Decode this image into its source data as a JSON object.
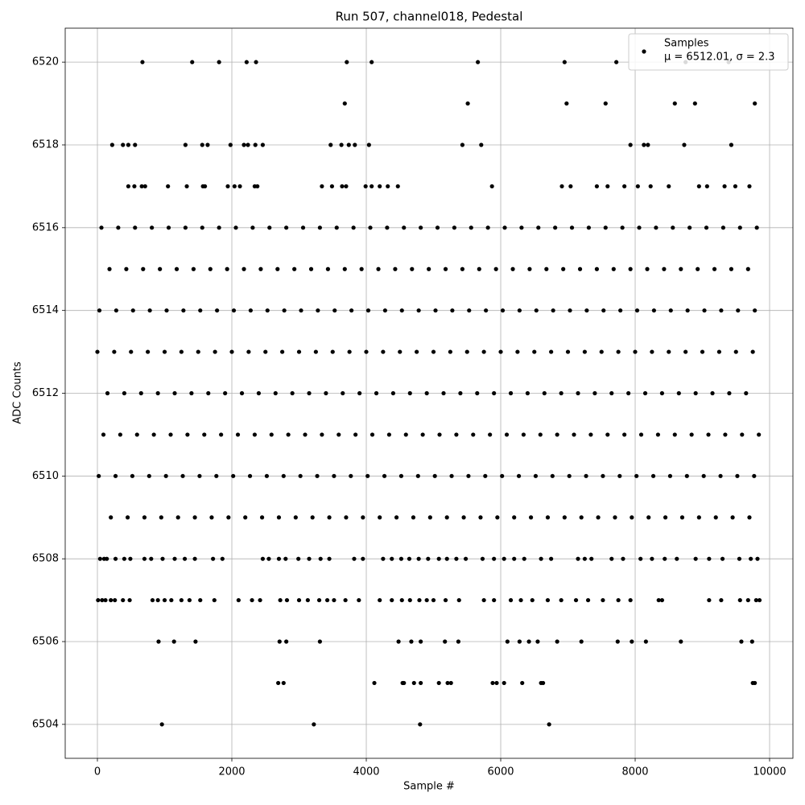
{
  "chart_data": {
    "type": "scatter",
    "title": "Run 507, channel018, Pedestal",
    "x_label": "Sample #",
    "y_label": "ADC Counts",
    "xlim": [
      -479,
      10347
    ],
    "xticks": [
      0,
      2000,
      4000,
      6000,
      8000,
      10000
    ],
    "ylim": [
      6503.18,
      6520.82
    ],
    "yticks": [
      6504,
      6506,
      6508,
      6510,
      6512,
      6514,
      6516,
      6518,
      6520
    ],
    "grid": true,
    "legend_position": "upper right",
    "legend_note": "μ = 6512.01, σ = 2.3",
    "series": [
      {
        "name": "Samples",
        "color": "#000000",
        "x": [
          670,
          1410,
          1810,
          2220,
          2360,
          3710,
          4080,
          5660,
          6950,
          7720,
          8750,
          9390,
          3680,
          5510,
          6980,
          7560,
          8590,
          8890,
          9780,
          220,
          380,
          460,
          560,
          1310,
          1560,
          1640,
          1980,
          2180,
          2240,
          2350,
          2460,
          3470,
          3630,
          3740,
          3830,
          4040,
          5430,
          5710,
          7930,
          8130,
          8190,
          8730,
          9430,
          460,
          550,
          660,
          710,
          1050,
          1330,
          1570,
          1600,
          1940,
          2040,
          2120,
          2340,
          2380,
          3340,
          3490,
          3640,
          3700,
          3990,
          4080,
          4200,
          4320,
          4470,
          5870,
          6910,
          7040,
          7430,
          7590,
          7840,
          8040,
          8230,
          8500,
          8950,
          9070,
          9330,
          9490,
          9700,
          60,
          310,
          560,
          810,
          1060,
          1310,
          1560,
          1810,
          2060,
          2310,
          2560,
          2810,
          3060,
          3310,
          3560,
          3810,
          4060,
          4310,
          4560,
          4810,
          5060,
          5310,
          5560,
          5810,
          6060,
          6310,
          6560,
          6810,
          7060,
          7310,
          7560,
          7810,
          8060,
          8310,
          8560,
          8810,
          9060,
          9310,
          9560,
          9810,
          180,
          430,
          680,
          930,
          1180,
          1430,
          1680,
          1930,
          2180,
          2430,
          2680,
          2930,
          3180,
          3430,
          3680,
          3930,
          4180,
          4430,
          4680,
          4930,
          5180,
          5430,
          5680,
          5930,
          6180,
          6430,
          6680,
          6930,
          7180,
          7430,
          7680,
          7930,
          8180,
          8430,
          8680,
          8930,
          9180,
          9430,
          9680,
          30,
          280,
          530,
          780,
          1030,
          1280,
          1530,
          1780,
          2030,
          2280,
          2530,
          2780,
          3030,
          3280,
          3530,
          3780,
          4030,
          4280,
          4530,
          4780,
          5030,
          5280,
          5530,
          5780,
          6030,
          6280,
          6530,
          6780,
          7030,
          7280,
          7530,
          7780,
          8030,
          8280,
          8530,
          8780,
          9030,
          9280,
          9530,
          9780,
          0,
          250,
          500,
          750,
          1000,
          1250,
          1500,
          1750,
          2000,
          2250,
          2500,
          2750,
          3000,
          3250,
          3500,
          3750,
          4000,
          4250,
          4500,
          4750,
          5000,
          5250,
          5500,
          5750,
          6000,
          6250,
          6500,
          6750,
          7000,
          7250,
          7500,
          7750,
          8000,
          8250,
          8500,
          8750,
          9000,
          9250,
          9500,
          9750,
          150,
          400,
          650,
          900,
          1150,
          1400,
          1650,
          1900,
          2150,
          2400,
          2650,
          2900,
          3150,
          3400,
          3650,
          3900,
          4150,
          4400,
          4650,
          4900,
          5150,
          5400,
          5650,
          5900,
          6150,
          6400,
          6650,
          6900,
          7150,
          7400,
          7650,
          7900,
          8150,
          8400,
          8650,
          8900,
          9150,
          9400,
          9650,
          90,
          340,
          590,
          840,
          1090,
          1340,
          1590,
          1840,
          2090,
          2340,
          2590,
          2840,
          3090,
          3340,
          3590,
          3840,
          4090,
          4340,
          4590,
          4840,
          5090,
          5340,
          5590,
          5840,
          6090,
          6340,
          6590,
          6840,
          7090,
          7340,
          7590,
          7840,
          8090,
          8340,
          8590,
          8840,
          9090,
          9340,
          9590,
          9840,
          20,
          270,
          520,
          770,
          1020,
          1270,
          1520,
          1770,
          2020,
          2270,
          2520,
          2770,
          3020,
          3270,
          3520,
          3770,
          4020,
          4270,
          4520,
          4770,
          5020,
          5270,
          5520,
          5770,
          6020,
          6270,
          6520,
          6770,
          7020,
          7270,
          7520,
          7770,
          8020,
          8270,
          8520,
          8770,
          9020,
          9270,
          9520,
          9770,
          200,
          450,
          700,
          950,
          1200,
          1450,
          1700,
          1950,
          2200,
          2450,
          2700,
          2950,
          3200,
          3450,
          3700,
          3950,
          4200,
          4450,
          4700,
          4950,
          5200,
          5450,
          5700,
          5950,
          6200,
          6450,
          6700,
          6950,
          7200,
          7450,
          7700,
          7950,
          8200,
          8450,
          8700,
          8950,
          9200,
          9450,
          9700,
          40,
          100,
          140,
          270,
          400,
          490,
          700,
          800,
          970,
          1150,
          1300,
          1450,
          1720,
          1860,
          2460,
          2550,
          2700,
          2800,
          2990,
          3150,
          3320,
          3450,
          3820,
          3950,
          4250,
          4380,
          4520,
          4640,
          4780,
          4920,
          5080,
          5200,
          5340,
          5480,
          5730,
          5900,
          6050,
          6200,
          6350,
          6600,
          6750,
          7150,
          7250,
          7350,
          7650,
          7820,
          8080,
          8250,
          8440,
          8620,
          8900,
          9100,
          9300,
          9550,
          9720,
          9820,
          10,
          70,
          120,
          200,
          260,
          380,
          480,
          820,
          900,
          1000,
          1100,
          1250,
          1370,
          1530,
          1740,
          2100,
          2300,
          2420,
          2720,
          2820,
          3000,
          3130,
          3300,
          3420,
          3520,
          3690,
          3890,
          4200,
          4380,
          4530,
          4650,
          4790,
          4900,
          5000,
          5180,
          5380,
          5750,
          5900,
          6150,
          6300,
          6470,
          6700,
          6900,
          7120,
          7300,
          7520,
          7750,
          7930,
          8350,
          8400,
          9100,
          9280,
          9560,
          9680,
          9800,
          9850,
          910,
          1140,
          1460,
          2710,
          2810,
          3310,
          4480,
          4670,
          4810,
          5170,
          5370,
          6100,
          6280,
          6420,
          6550,
          6840,
          7200,
          7740,
          7950,
          8160,
          8680,
          9580,
          9740,
          2690,
          2770,
          4120,
          4540,
          4560,
          4710,
          4810,
          5080,
          5210,
          5260,
          5880,
          5940,
          6050,
          6320,
          6600,
          6630,
          9750,
          9780,
          960,
          3220,
          4800,
          6720
        ],
        "values": [
          6520,
          6520,
          6520,
          6520,
          6520,
          6520,
          6520,
          6520,
          6520,
          6520,
          6520,
          6520,
          6519,
          6519,
          6519,
          6519,
          6519,
          6519,
          6519,
          6518,
          6518,
          6518,
          6518,
          6518,
          6518,
          6518,
          6518,
          6518,
          6518,
          6518,
          6518,
          6518,
          6518,
          6518,
          6518,
          6518,
          6518,
          6518,
          6518,
          6518,
          6518,
          6518,
          6518,
          6517,
          6517,
          6517,
          6517,
          6517,
          6517,
          6517,
          6517,
          6517,
          6517,
          6517,
          6517,
          6517,
          6517,
          6517,
          6517,
          6517,
          6517,
          6517,
          6517,
          6517,
          6517,
          6517,
          6517,
          6517,
          6517,
          6517,
          6517,
          6517,
          6517,
          6517,
          6517,
          6517,
          6517,
          6517,
          6517,
          6516,
          6516,
          6516,
          6516,
          6516,
          6516,
          6516,
          6516,
          6516,
          6516,
          6516,
          6516,
          6516,
          6516,
          6516,
          6516,
          6516,
          6516,
          6516,
          6516,
          6516,
          6516,
          6516,
          6516,
          6516,
          6516,
          6516,
          6516,
          6516,
          6516,
          6516,
          6516,
          6516,
          6516,
          6516,
          6516,
          6516,
          6516,
          6516,
          6516,
          6515,
          6515,
          6515,
          6515,
          6515,
          6515,
          6515,
          6515,
          6515,
          6515,
          6515,
          6515,
          6515,
          6515,
          6515,
          6515,
          6515,
          6515,
          6515,
          6515,
          6515,
          6515,
          6515,
          6515,
          6515,
          6515,
          6515,
          6515,
          6515,
          6515,
          6515,
          6515,
          6515,
          6515,
          6515,
          6515,
          6515,
          6515,
          6515,
          6514,
          6514,
          6514,
          6514,
          6514,
          6514,
          6514,
          6514,
          6514,
          6514,
          6514,
          6514,
          6514,
          6514,
          6514,
          6514,
          6514,
          6514,
          6514,
          6514,
          6514,
          6514,
          6514,
          6514,
          6514,
          6514,
          6514,
          6514,
          6514,
          6514,
          6514,
          6514,
          6514,
          6514,
          6514,
          6514,
          6514,
          6514,
          6514,
          6514,
          6513,
          6513,
          6513,
          6513,
          6513,
          6513,
          6513,
          6513,
          6513,
          6513,
          6513,
          6513,
          6513,
          6513,
          6513,
          6513,
          6513,
          6513,
          6513,
          6513,
          6513,
          6513,
          6513,
          6513,
          6513,
          6513,
          6513,
          6513,
          6513,
          6513,
          6513,
          6513,
          6513,
          6513,
          6513,
          6513,
          6513,
          6513,
          6513,
          6513,
          6512,
          6512,
          6512,
          6512,
          6512,
          6512,
          6512,
          6512,
          6512,
          6512,
          6512,
          6512,
          6512,
          6512,
          6512,
          6512,
          6512,
          6512,
          6512,
          6512,
          6512,
          6512,
          6512,
          6512,
          6512,
          6512,
          6512,
          6512,
          6512,
          6512,
          6512,
          6512,
          6512,
          6512,
          6512,
          6512,
          6512,
          6512,
          6512,
          6511,
          6511,
          6511,
          6511,
          6511,
          6511,
          6511,
          6511,
          6511,
          6511,
          6511,
          6511,
          6511,
          6511,
          6511,
          6511,
          6511,
          6511,
          6511,
          6511,
          6511,
          6511,
          6511,
          6511,
          6511,
          6511,
          6511,
          6511,
          6511,
          6511,
          6511,
          6511,
          6511,
          6511,
          6511,
          6511,
          6511,
          6511,
          6511,
          6511,
          6510,
          6510,
          6510,
          6510,
          6510,
          6510,
          6510,
          6510,
          6510,
          6510,
          6510,
          6510,
          6510,
          6510,
          6510,
          6510,
          6510,
          6510,
          6510,
          6510,
          6510,
          6510,
          6510,
          6510,
          6510,
          6510,
          6510,
          6510,
          6510,
          6510,
          6510,
          6510,
          6510,
          6510,
          6510,
          6510,
          6510,
          6510,
          6510,
          6510,
          6509,
          6509,
          6509,
          6509,
          6509,
          6509,
          6509,
          6509,
          6509,
          6509,
          6509,
          6509,
          6509,
          6509,
          6509,
          6509,
          6509,
          6509,
          6509,
          6509,
          6509,
          6509,
          6509,
          6509,
          6509,
          6509,
          6509,
          6509,
          6509,
          6509,
          6509,
          6509,
          6509,
          6509,
          6509,
          6509,
          6509,
          6509,
          6509,
          6508,
          6508,
          6508,
          6508,
          6508,
          6508,
          6508,
          6508,
          6508,
          6508,
          6508,
          6508,
          6508,
          6508,
          6508,
          6508,
          6508,
          6508,
          6508,
          6508,
          6508,
          6508,
          6508,
          6508,
          6508,
          6508,
          6508,
          6508,
          6508,
          6508,
          6508,
          6508,
          6508,
          6508,
          6508,
          6508,
          6508,
          6508,
          6508,
          6508,
          6508,
          6508,
          6508,
          6508,
          6508,
          6508,
          6508,
          6508,
          6508,
          6508,
          6508,
          6508,
          6508,
          6508,
          6508,
          6508,
          6507,
          6507,
          6507,
          6507,
          6507,
          6507,
          6507,
          6507,
          6507,
          6507,
          6507,
          6507,
          6507,
          6507,
          6507,
          6507,
          6507,
          6507,
          6507,
          6507,
          6507,
          6507,
          6507,
          6507,
          6507,
          6507,
          6507,
          6507,
          6507,
          6507,
          6507,
          6507,
          6507,
          6507,
          6507,
          6507,
          6507,
          6507,
          6507,
          6507,
          6507,
          6507,
          6507,
          6507,
          6507,
          6507,
          6507,
          6507,
          6507,
          6507,
          6507,
          6507,
          6507,
          6507,
          6507,
          6507,
          6506,
          6506,
          6506,
          6506,
          6506,
          6506,
          6506,
          6506,
          6506,
          6506,
          6506,
          6506,
          6506,
          6506,
          6506,
          6506,
          6506,
          6506,
          6506,
          6506,
          6506,
          6506,
          6506,
          6505,
          6505,
          6505,
          6505,
          6505,
          6505,
          6505,
          6505,
          6505,
          6505,
          6505,
          6505,
          6505,
          6505,
          6505,
          6505,
          6505,
          6505,
          6504,
          6504,
          6504,
          6504
        ]
      }
    ]
  }
}
